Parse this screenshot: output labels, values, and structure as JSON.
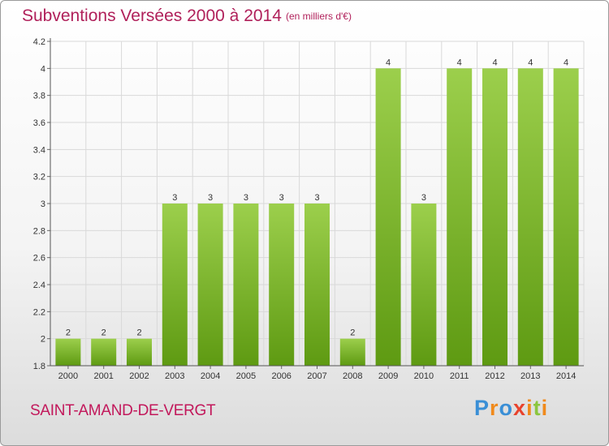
{
  "header": {
    "title": "Subventions Versées 2000 à 2014",
    "unit": "(en milliers d'€)"
  },
  "footer": {
    "commune": "SAINT-AMAND-DE-VERGT",
    "logo_text": "Proxiti"
  },
  "colors": {
    "title": "#b0205a",
    "bar_light": "#9ccf4c",
    "bar_dark": "#5e9a12",
    "grid": "#d9d9d9"
  },
  "chart_data": {
    "type": "bar",
    "title": "Subventions Versées 2000 à 2014",
    "subtitle": "(en milliers d'€)",
    "categories": [
      "2000",
      "2001",
      "2002",
      "2003",
      "2004",
      "2005",
      "2006",
      "2007",
      "2008",
      "2009",
      "2010",
      "2011",
      "2012",
      "2013",
      "2014"
    ],
    "values": [
      2,
      2,
      2,
      3,
      3,
      3,
      3,
      3,
      2,
      4,
      3,
      4,
      4,
      4,
      4
    ],
    "data_labels": [
      "2",
      "2",
      "2",
      "3",
      "3",
      "3",
      "3",
      "3",
      "2",
      "4",
      "3",
      "4",
      "4",
      "4",
      "4"
    ],
    "y_ticks": [
      "1.8",
      "2",
      "2.2",
      "2.4",
      "2.6",
      "2.8",
      "3",
      "3.2",
      "3.4",
      "3.6",
      "3.8",
      "4",
      "4.2"
    ],
    "y_tick_values": [
      1.8,
      2,
      2.2,
      2.4,
      2.6,
      2.8,
      3,
      3.2,
      3.4,
      3.6,
      3.8,
      4,
      4.2
    ],
    "ylim": [
      1.8,
      4.2
    ],
    "grid": true,
    "legend": "none",
    "xlabel": "",
    "ylabel": ""
  }
}
